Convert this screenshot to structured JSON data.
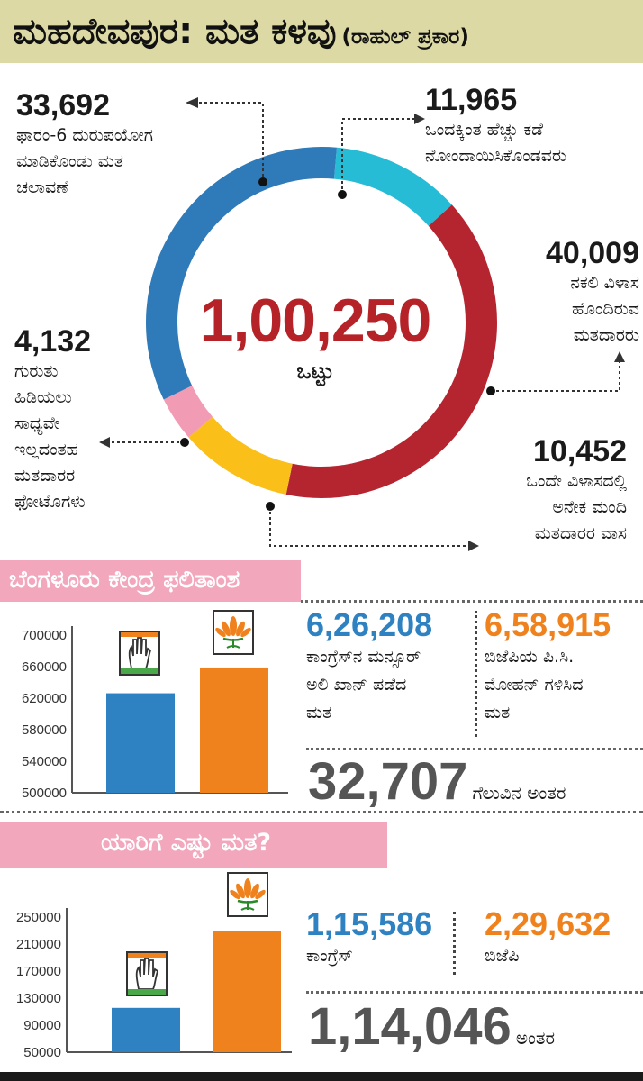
{
  "header": {
    "title": "ಮಹದೇವಪುರ: ಮತ ಕಳವು",
    "subtitle": "(ರಾಹುಲ್ ಪ್ರಕಾರ)"
  },
  "donut": {
    "total": "1,00,250",
    "total_label": "ಒಟ್ಟು",
    "segments": [
      {
        "value": "11,965",
        "label_lines": [
          "ಒಂದಕ್ಕಿಂತ ಹೆಚ್ಚು ಕಡೆ",
          "ನೋಂದಾಯಿಸಿಕೊಂಡವರು"
        ],
        "color": "#27bcd6"
      },
      {
        "value": "40,009",
        "label_lines": [
          "ನಕಲಿ ವಿಳಾಸ",
          "ಹೊಂದಿರುವ",
          "ಮತದಾರರು"
        ],
        "color": "#b52530"
      },
      {
        "value": "10,452",
        "label_lines": [
          "ಒಂದೇ ವಿಳಾಸದಲ್ಲಿ",
          "ಅನೇಕ ಮಂದಿ",
          "ಮತದಾರರ ವಾಸ"
        ],
        "color": "#fbbf1a"
      },
      {
        "value": "4,132",
        "label_lines": [
          "ಗುರುತು",
          "ಹಿಡಿಯಲು",
          "ಸಾಧ್ಯವೇ",
          "ಇಲ್ಲದಂತಹ",
          "ಮತದಾರರ",
          "ಫೋಟೊಗಳು"
        ],
        "color": "#f29bb4"
      },
      {
        "value": "33,692",
        "label_lines": [
          "ಫಾರಂ-6 ದುರುಪಯೋಗ",
          "ಮಾಡಿಕೊಂಡು ಮತ",
          "ಚಲಾವಣೆ"
        ],
        "color": "#2f7ab8"
      }
    ]
  },
  "section1": {
    "title": "ಬೆಂಗಳೂರು ಕೇಂದ್ರ ಫಲಿತಾಂಶ",
    "congress_value": "6,26,208",
    "congress_label_lines": [
      "ಕಾಂಗ್ರೆಸ್‌ನ ಮನ್ಸೂರ್",
      "ಅಲಿ ಖಾನ್ ಪಡೆದ",
      "ಮತ"
    ],
    "bjp_value": "6,58,915",
    "bjp_label_lines": [
      "ಬಿಜೆಪಿಯ ಪಿ.ಸಿ.",
      "ಮೋಹನ್ ಗಳಿಸಿದ",
      "ಮತ"
    ],
    "margin_value": "32,707",
    "margin_label": "ಗೆಲುವಿನ ಅಂತರ"
  },
  "section2": {
    "title": "ಯಾರಿಗೆ ಎಷ್ಟು ಮತ?",
    "congress_value": "1,15,586",
    "congress_label": "ಕಾಂಗ್ರೆಸ್",
    "bjp_value": "2,29,632",
    "bjp_label": "ಬಿಜೆಪಿ",
    "margin_value": "1,14,046",
    "margin_label": "ಅಂತರ"
  },
  "colors": {
    "congress": "#2e82c1",
    "bjp": "#f0821e",
    "accent_pink": "#f2a7bd"
  },
  "chart_data": [
    {
      "type": "pie",
      "categories": [
        "ಒಂದಕ್ಕಿಂತ ಹೆಚ್ಚು ಕಡೆ ನೋಂದಾಯಿಸಿಕೊಂಡವರು",
        "ನಕಲಿ ವಿಳಾಸ ಹೊಂದಿರುವ ಮತದಾರರು",
        "ಒಂದೇ ವಿಳಾಸದಲ್ಲಿ ಅನೇಕ ಮಂದಿ ಮತದಾರರ ವಾಸ",
        "ಗುರುತು ಹಿಡಿಯಲು ಸಾಧ್ಯವೇ ಇಲ್ಲದಂತಹ ಮತದಾರರ ಫೋಟೊಗಳು",
        "ಫಾರಂ-6 ದುರುಪಯೋಗ ಮಾಡಿಕೊಂಡು ಮತ ಚಲಾವಣೆ"
      ],
      "values": [
        11965,
        40009,
        10452,
        4132,
        33692
      ],
      "title": "ಮಹದೇವಪುರ: ಮತ ಕಳವು"
    },
    {
      "type": "bar",
      "categories": [
        "Congress",
        "BJP"
      ],
      "values": [
        626208,
        658915
      ],
      "ylim": [
        500000,
        700000
      ],
      "yticks": [
        500000,
        540000,
        580000,
        620000,
        660000,
        700000
      ],
      "title": "ಬೆಂಗಳೂರು ಕೇಂದ್ರ ಫಲಿತಾಂಶ"
    },
    {
      "type": "bar",
      "categories": [
        "Congress",
        "BJP"
      ],
      "values": [
        115586,
        229632
      ],
      "ylim": [
        50000,
        250000
      ],
      "yticks": [
        50000,
        90000,
        130000,
        170000,
        210000,
        250000
      ],
      "title": "ಯಾರಿಗೆ ಎಷ್ಟು ಮತ?"
    }
  ]
}
